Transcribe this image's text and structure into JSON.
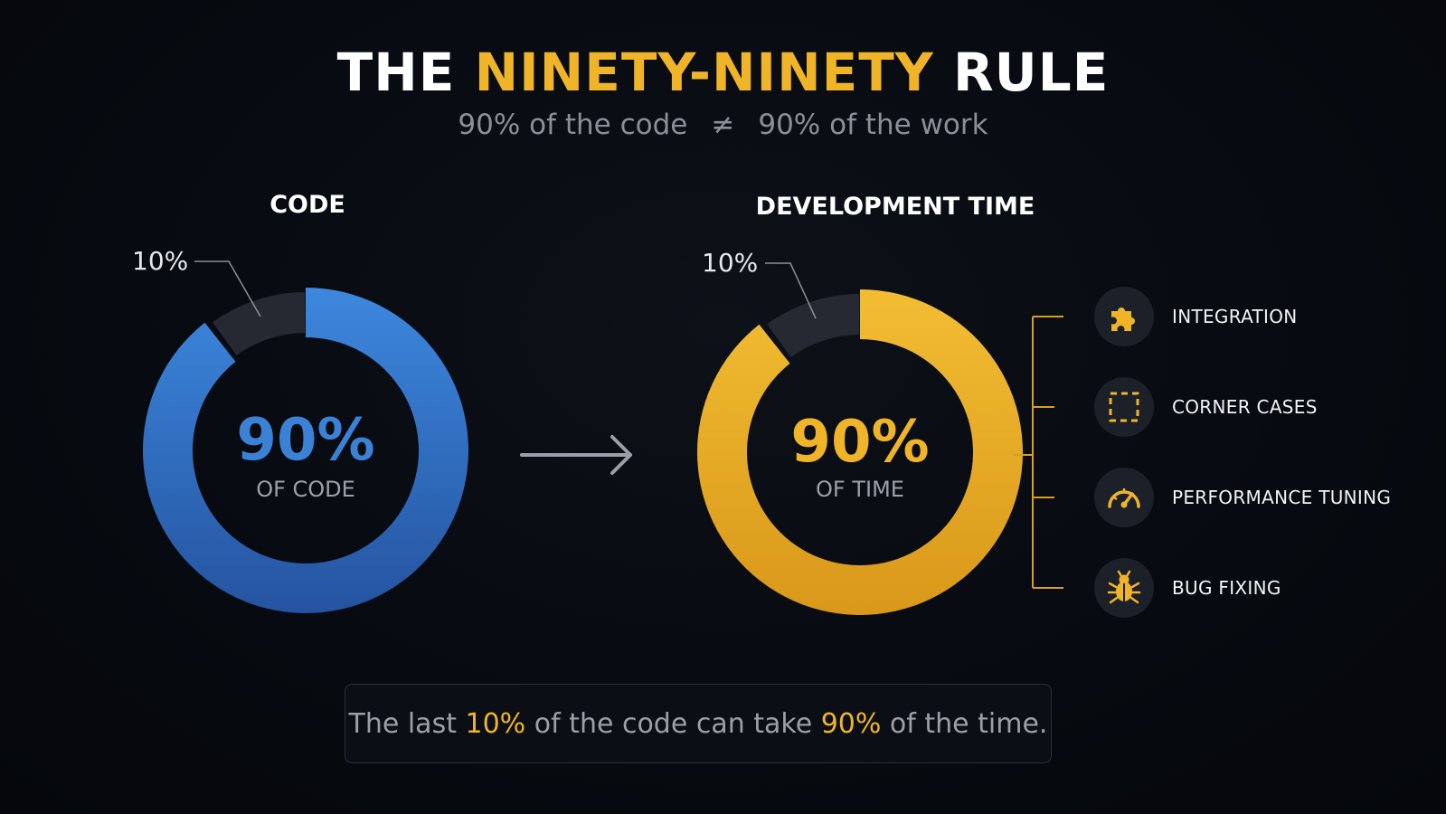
{
  "title": {
    "part1": "THE ",
    "highlight": "NINETY-NINETY",
    "part2": " RULE"
  },
  "subtitle": {
    "left": "90% of the code",
    "symbol": "≠",
    "right": "90% of the work"
  },
  "colors": {
    "blue": "#3b82d6",
    "gold": "#f0b429",
    "remainder": "#252a32",
    "background": "#070a10"
  },
  "chart_data": [
    {
      "type": "pie",
      "title": "CODE",
      "slices": [
        {
          "label": "90%",
          "value": 90,
          "color": "#3b82d6"
        },
        {
          "label": "10%",
          "value": 10,
          "color": "#252a32"
        }
      ],
      "center_value": "90%",
      "center_label": "OF CODE",
      "callout_label": "10%"
    },
    {
      "type": "pie",
      "title": "DEVELOPMENT TIME",
      "slices": [
        {
          "label": "90%",
          "value": 90,
          "color": "#f0b429"
        },
        {
          "label": "10%",
          "value": 10,
          "color": "#252a32"
        }
      ],
      "center_value": "90%",
      "center_label": "OF TIME",
      "callout_label": "10%"
    }
  ],
  "tasks": [
    {
      "label": "INTEGRATION",
      "icon": "puzzle-icon"
    },
    {
      "label": "CORNER CASES",
      "icon": "dashed-square-icon"
    },
    {
      "label": "PERFORMANCE TUNING",
      "icon": "gauge-icon"
    },
    {
      "label": "BUG FIXING",
      "icon": "bug-icon"
    }
  ],
  "callout": {
    "t1": "The last ",
    "h1": "10%",
    "t2": " of the code can take ",
    "h2": "90%",
    "t3": " of the time."
  }
}
